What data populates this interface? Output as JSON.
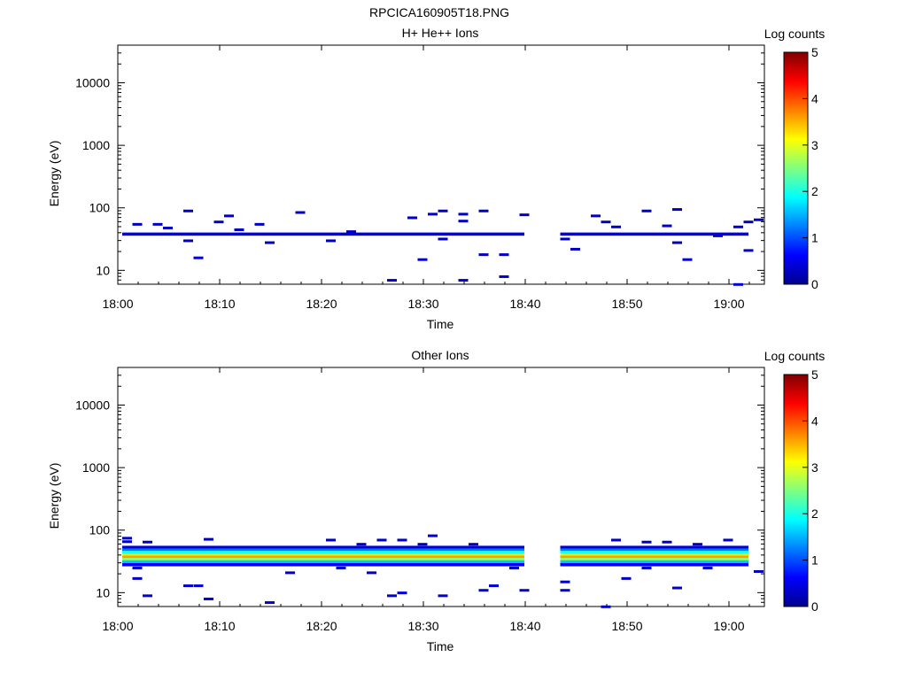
{
  "figure": {
    "title": "RPCICA160905T18.PNG"
  },
  "chart_data": [
    {
      "type": "heatmap",
      "title": "H+ He++ Ions",
      "xlabel": "Time",
      "ylabel": "Energy (eV)",
      "x_ticks": [
        "18:00",
        "18:10",
        "18:20",
        "18:30",
        "18:40",
        "18:50",
        "19:00"
      ],
      "x_range_minutes": [
        0,
        63.5
      ],
      "y_scale": "log",
      "y_range": [
        6,
        40000
      ],
      "y_ticks": [
        "10",
        "100",
        "1000",
        "10000"
      ],
      "colorbar": {
        "label": "Log counts",
        "ticks": [
          "0",
          "1",
          "2",
          "3",
          "4",
          "5"
        ],
        "range": [
          0,
          5
        ],
        "colormap": "jet"
      },
      "data_gap_minutes": [
        40,
        43
      ],
      "bands": [
        {
          "t0": 0,
          "t1": 40,
          "energy": 38,
          "log_counts": 0.5
        },
        {
          "t0": 43,
          "t1": 62,
          "energy": 38,
          "log_counts": 0.5
        }
      ],
      "cells": [
        [
          1,
          55,
          0.3
        ],
        [
          3,
          55,
          0.3
        ],
        [
          4,
          48,
          0.3
        ],
        [
          6,
          90,
          0.3
        ],
        [
          6,
          30,
          0.3
        ],
        [
          7,
          16,
          0.4
        ],
        [
          9,
          60,
          0.3
        ],
        [
          10,
          75,
          0.3
        ],
        [
          11,
          45,
          0.3
        ],
        [
          13,
          55,
          0.3
        ],
        [
          14,
          28,
          0.3
        ],
        [
          17,
          85,
          0.3
        ],
        [
          20,
          30,
          0.3
        ],
        [
          22,
          42,
          0.3
        ],
        [
          26,
          7,
          0.4
        ],
        [
          28,
          70,
          0.3
        ],
        [
          29,
          15,
          0.4
        ],
        [
          30,
          80,
          0.3
        ],
        [
          31,
          90,
          0.3
        ],
        [
          31,
          32,
          0.3
        ],
        [
          33,
          80,
          0.3
        ],
        [
          33,
          62,
          0.3
        ],
        [
          33,
          7,
          0.4
        ],
        [
          35,
          18,
          0.3
        ],
        [
          35,
          90,
          0.3
        ],
        [
          37,
          18,
          0.3
        ],
        [
          37,
          8,
          0.4
        ],
        [
          39,
          78,
          0.3
        ],
        [
          43,
          32,
          0.3
        ],
        [
          44,
          22,
          0.3
        ],
        [
          46,
          75,
          0.3
        ],
        [
          47,
          60,
          0.3
        ],
        [
          48,
          50,
          0.3
        ],
        [
          51,
          90,
          0.3
        ],
        [
          53,
          52,
          0.3
        ],
        [
          54,
          95,
          0.3
        ],
        [
          54,
          28,
          0.3
        ],
        [
          55,
          15,
          0.4
        ],
        [
          58,
          36,
          0.3
        ],
        [
          60,
          50,
          0.3
        ],
        [
          60,
          6,
          0.4
        ],
        [
          61,
          60,
          0.3
        ],
        [
          61,
          21,
          0.4
        ],
        [
          62,
          65,
          0.3
        ]
      ]
    },
    {
      "type": "heatmap",
      "title": "Other Ions",
      "xlabel": "Time",
      "ylabel": "Energy (eV)",
      "x_ticks": [
        "18:00",
        "18:10",
        "18:20",
        "18:30",
        "18:40",
        "18:50",
        "19:00"
      ],
      "x_range_minutes": [
        0,
        63.5
      ],
      "y_scale": "log",
      "y_range": [
        6,
        40000
      ],
      "y_ticks": [
        "10",
        "100",
        "1000",
        "10000"
      ],
      "colorbar": {
        "label": "Log counts",
        "ticks": [
          "0",
          "1",
          "2",
          "3",
          "4",
          "5"
        ],
        "range": [
          0,
          5
        ],
        "colormap": "jet"
      },
      "data_gap_minutes": [
        40,
        43
      ],
      "bands": [
        {
          "t0": 0,
          "t1": 40,
          "energy": 53,
          "log_counts": 0.4
        },
        {
          "t0": 0,
          "t1": 40,
          "energy": 48,
          "log_counts": 1.2
        },
        {
          "t0": 0,
          "t1": 40,
          "energy": 44,
          "log_counts": 2.0
        },
        {
          "t0": 0,
          "t1": 40,
          "energy": 40,
          "log_counts": 3.0
        },
        {
          "t0": 0,
          "t1": 40,
          "energy": 37,
          "log_counts": 3.6
        },
        {
          "t0": 0,
          "t1": 40,
          "energy": 34,
          "log_counts": 2.6
        },
        {
          "t0": 0,
          "t1": 40,
          "energy": 31,
          "log_counts": 1.6
        },
        {
          "t0": 0,
          "t1": 40,
          "energy": 28,
          "log_counts": 0.6
        },
        {
          "t0": 43,
          "t1": 62,
          "energy": 53,
          "log_counts": 0.4
        },
        {
          "t0": 43,
          "t1": 62,
          "energy": 48,
          "log_counts": 1.2
        },
        {
          "t0": 43,
          "t1": 62,
          "energy": 44,
          "log_counts": 2.0
        },
        {
          "t0": 43,
          "t1": 62,
          "energy": 40,
          "log_counts": 3.0
        },
        {
          "t0": 43,
          "t1": 62,
          "energy": 37,
          "log_counts": 3.6
        },
        {
          "t0": 43,
          "t1": 62,
          "energy": 34,
          "log_counts": 2.6
        },
        {
          "t0": 43,
          "t1": 62,
          "energy": 31,
          "log_counts": 1.6
        },
        {
          "t0": 43,
          "t1": 62,
          "energy": 28,
          "log_counts": 0.6
        }
      ],
      "cells": [
        [
          0,
          75,
          0.3
        ],
        [
          0,
          66,
          0.3
        ],
        [
          1,
          25,
          0.3
        ],
        [
          1,
          17,
          0.3
        ],
        [
          2,
          65,
          0.3
        ],
        [
          2,
          9,
          0.4
        ],
        [
          6,
          13,
          0.4
        ],
        [
          7,
          13,
          0.4
        ],
        [
          8,
          72,
          0.3
        ],
        [
          8,
          8,
          0.4
        ],
        [
          14,
          7,
          0.4
        ],
        [
          16,
          21,
          0.3
        ],
        [
          20,
          70,
          0.3
        ],
        [
          21,
          25,
          0.3
        ],
        [
          23,
          60,
          0.3
        ],
        [
          24,
          21,
          0.3
        ],
        [
          25,
          70,
          0.3
        ],
        [
          26,
          9,
          0.4
        ],
        [
          27,
          70,
          0.3
        ],
        [
          27,
          10,
          0.4
        ],
        [
          29,
          60,
          0.3
        ],
        [
          30,
          82,
          0.3
        ],
        [
          31,
          9,
          0.4
        ],
        [
          34,
          60,
          0.3
        ],
        [
          35,
          11,
          0.4
        ],
        [
          36,
          13,
          0.4
        ],
        [
          38,
          25,
          0.3
        ],
        [
          39,
          11,
          0.4
        ],
        [
          43,
          15,
          0.3
        ],
        [
          43,
          11,
          0.4
        ],
        [
          47,
          6,
          0.4
        ],
        [
          48,
          70,
          0.3
        ],
        [
          49,
          17,
          0.3
        ],
        [
          51,
          65,
          0.3
        ],
        [
          51,
          25,
          0.3
        ],
        [
          53,
          65,
          0.3
        ],
        [
          54,
          12,
          0.4
        ],
        [
          56,
          60,
          0.3
        ],
        [
          57,
          25,
          0.3
        ],
        [
          59,
          70,
          0.3
        ],
        [
          62,
          22,
          0.3
        ]
      ]
    }
  ]
}
